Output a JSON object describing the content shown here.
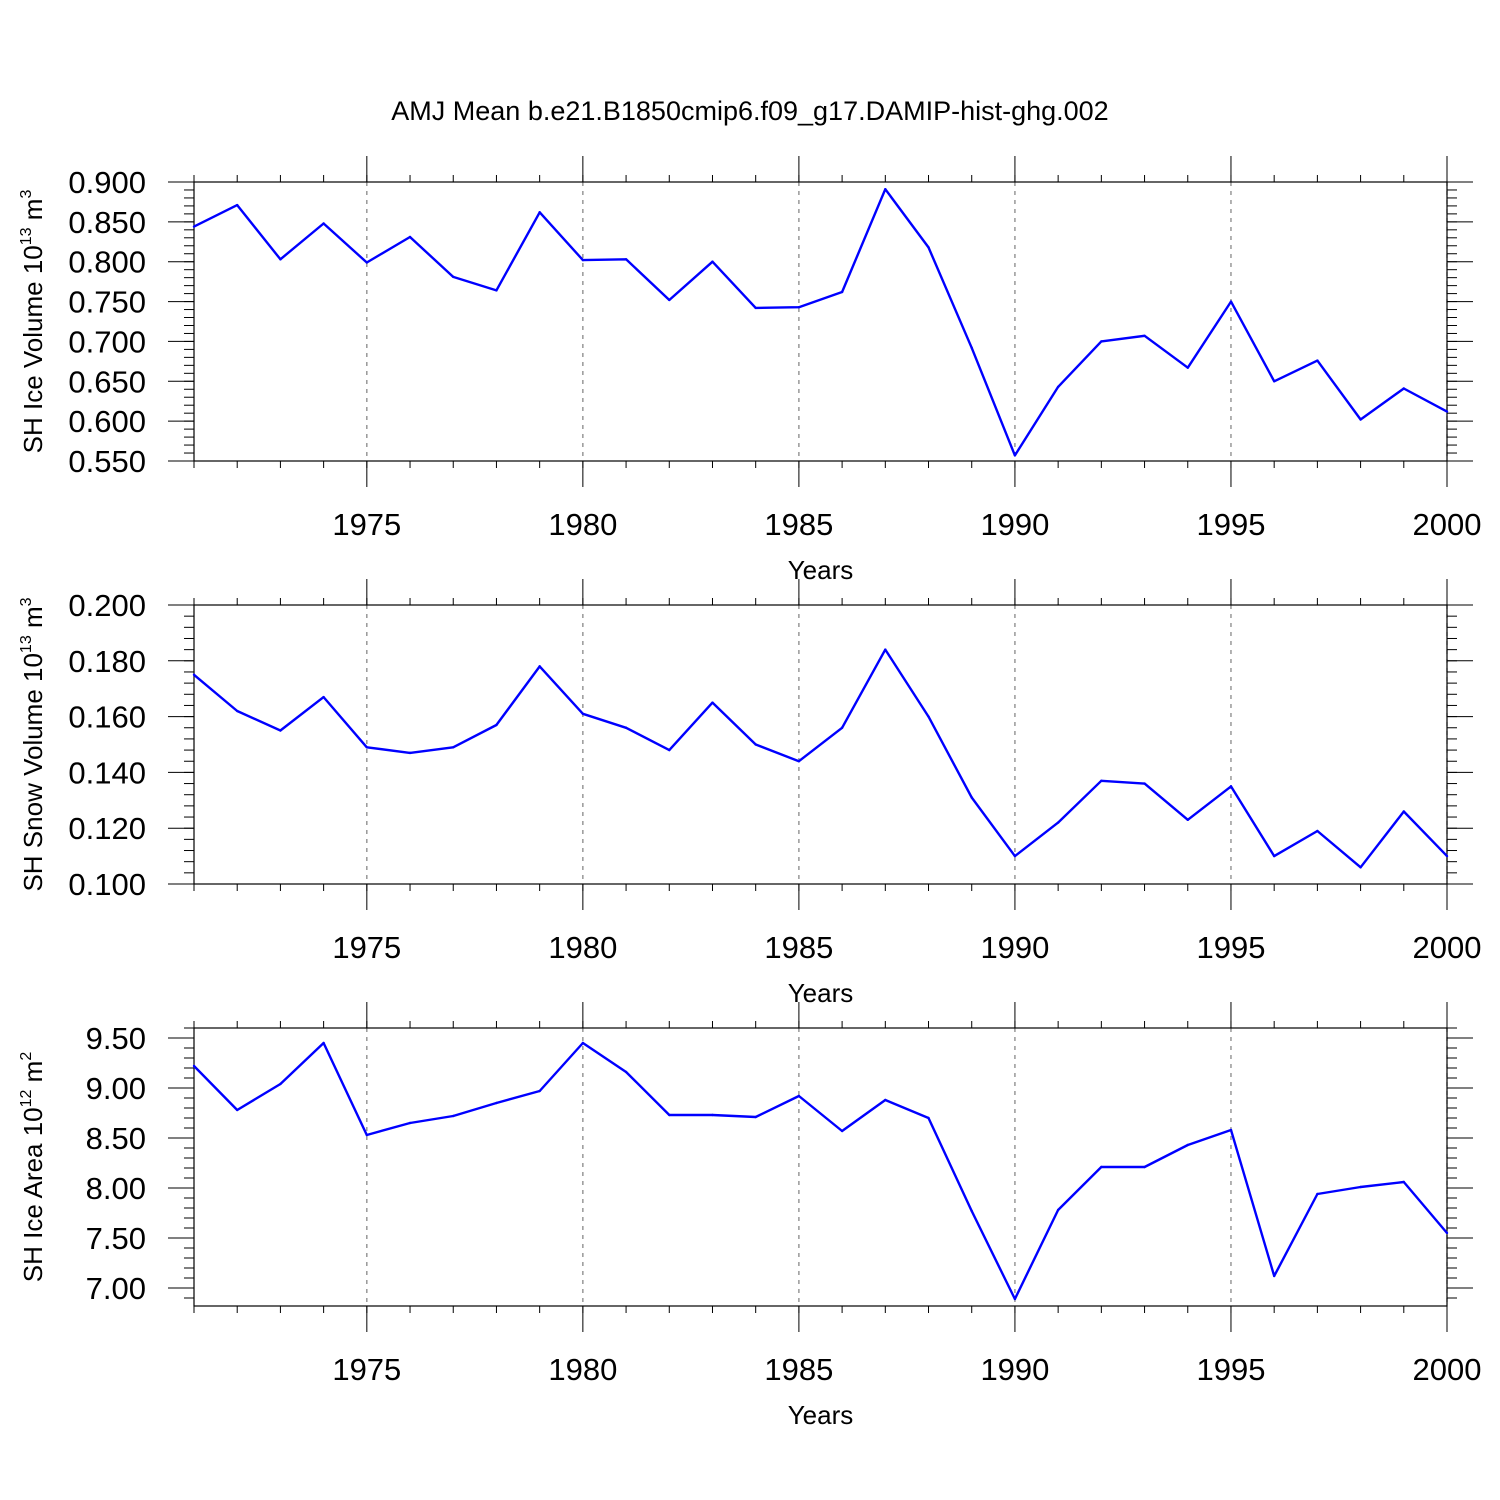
{
  "title": "AMJ Mean b.e21.B1850cmip6.f09_g17.DAMIP-hist-ghg.002",
  "colors": {
    "series": "#0000ff",
    "axis": "#000000",
    "grid": "#888888"
  },
  "chart_data": [
    {
      "type": "line",
      "ylabel": {
        "prefix": "SH Ice Volume 10",
        "exp": "13",
        "unit": " m",
        "unit_exp": "3"
      },
      "xlabel": "Years",
      "xlim": [
        1971,
        2000
      ],
      "ylim": [
        0.55,
        0.9
      ],
      "yticks": [
        0.55,
        0.6,
        0.65,
        0.7,
        0.75,
        0.8,
        0.85,
        0.9
      ],
      "ytick_labels": [
        "0.550",
        "0.600",
        "0.650",
        "0.700",
        "0.750",
        "0.800",
        "0.850",
        "0.900"
      ],
      "xticks": [
        1975,
        1980,
        1985,
        1990,
        1995,
        2000
      ],
      "xtick_labels": [
        "1975",
        "1980",
        "1985",
        "1990",
        "1995",
        "2000"
      ],
      "grid": "vertical-dashed",
      "x": [
        1971,
        1972,
        1973,
        1974,
        1975,
        1976,
        1977,
        1978,
        1979,
        1980,
        1981,
        1982,
        1983,
        1984,
        1985,
        1986,
        1987,
        1988,
        1989,
        1990,
        1991,
        1992,
        1993,
        1994,
        1995,
        1996,
        1997,
        1998,
        1999,
        2000
      ],
      "values": [
        0.844,
        0.871,
        0.803,
        0.848,
        0.799,
        0.831,
        0.781,
        0.764,
        0.862,
        0.802,
        0.803,
        0.752,
        0.8,
        0.742,
        0.743,
        0.762,
        0.891,
        0.818,
        0.692,
        0.557,
        0.643,
        0.7,
        0.707,
        0.667,
        0.75,
        0.65,
        0.676,
        0.602,
        0.641,
        0.612
      ]
    },
    {
      "type": "line",
      "ylabel": {
        "prefix": "SH Snow Volume 10",
        "exp": "13",
        "unit": " m",
        "unit_exp": "3"
      },
      "xlabel": "Years",
      "xlim": [
        1971,
        2000
      ],
      "ylim": [
        0.1,
        0.2
      ],
      "yticks": [
        0.1,
        0.12,
        0.14,
        0.16,
        0.18,
        0.2
      ],
      "ytick_labels": [
        "0.100",
        "0.120",
        "0.140",
        "0.160",
        "0.180",
        "0.200"
      ],
      "xticks": [
        1975,
        1980,
        1985,
        1990,
        1995,
        2000
      ],
      "xtick_labels": [
        "1975",
        "1980",
        "1985",
        "1990",
        "1995",
        "2000"
      ],
      "grid": "vertical-dashed",
      "x": [
        1971,
        1972,
        1973,
        1974,
        1975,
        1976,
        1977,
        1978,
        1979,
        1980,
        1981,
        1982,
        1983,
        1984,
        1985,
        1986,
        1987,
        1988,
        1989,
        1990,
        1991,
        1992,
        1993,
        1994,
        1995,
        1996,
        1997,
        1998,
        1999,
        2000
      ],
      "values": [
        0.175,
        0.162,
        0.155,
        0.167,
        0.149,
        0.147,
        0.149,
        0.157,
        0.178,
        0.161,
        0.156,
        0.148,
        0.165,
        0.15,
        0.144,
        0.156,
        0.184,
        0.16,
        0.131,
        0.11,
        0.122,
        0.137,
        0.136,
        0.123,
        0.135,
        0.11,
        0.119,
        0.106,
        0.126,
        0.11
      ]
    },
    {
      "type": "line",
      "ylabel": {
        "prefix": "SH Ice Area 10",
        "exp": "12",
        "unit": " m",
        "unit_exp": "2"
      },
      "xlabel": "Years",
      "xlim": [
        1971,
        2000
      ],
      "ylim": [
        6.82,
        9.6
      ],
      "yticks": [
        7.0,
        7.5,
        8.0,
        8.5,
        9.0,
        9.5
      ],
      "ytick_labels": [
        "7.00",
        "7.50",
        "8.00",
        "8.50",
        "9.00",
        "9.50"
      ],
      "xticks": [
        1975,
        1980,
        1985,
        1990,
        1995,
        2000
      ],
      "xtick_labels": [
        "1975",
        "1980",
        "1985",
        "1990",
        "1995",
        "2000"
      ],
      "grid": "vertical-dashed",
      "x": [
        1971,
        1972,
        1973,
        1974,
        1975,
        1976,
        1977,
        1978,
        1979,
        1980,
        1981,
        1982,
        1983,
        1984,
        1985,
        1986,
        1987,
        1988,
        1989,
        1990,
        1991,
        1992,
        1993,
        1994,
        1995,
        1996,
        1997,
        1998,
        1999,
        2000
      ],
      "values": [
        9.22,
        8.78,
        9.04,
        9.45,
        8.53,
        8.65,
        8.72,
        8.85,
        8.97,
        9.45,
        9.16,
        8.73,
        8.73,
        8.71,
        8.92,
        8.57,
        8.88,
        8.7,
        7.77,
        6.89,
        7.78,
        8.21,
        8.21,
        8.43,
        8.58,
        7.12,
        7.94,
        8.01,
        8.06,
        7.55
      ]
    }
  ]
}
